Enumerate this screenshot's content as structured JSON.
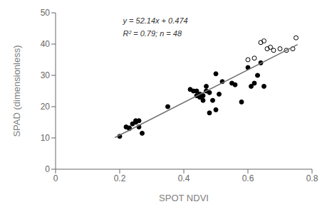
{
  "chart_data": {
    "type": "scatter",
    "title": "",
    "xlabel": "SPOT NDVI",
    "ylabel": "SPAD (dimensionless)",
    "xlim": [
      0,
      0.8
    ],
    "ylim": [
      0,
      50
    ],
    "xticks": [
      0,
      0.2,
      0.4,
      0.6,
      0.8
    ],
    "yticks": [
      0,
      10,
      20,
      30,
      40,
      50
    ],
    "grid": false,
    "annotations": [
      "y = 52.14x + 0.474",
      "R² = 0.79; n = 48"
    ],
    "series": [
      {
        "type": "scatter",
        "color": "#000000",
        "marker": "circle",
        "x": [
          0.2,
          0.22,
          0.23,
          0.23,
          0.24,
          0.25,
          0.25,
          0.26,
          0.26,
          0.27,
          0.35,
          0.42,
          0.43,
          0.44,
          0.44,
          0.45,
          0.45,
          0.46,
          0.46,
          0.47,
          0.47,
          0.48,
          0.48,
          0.49,
          0.5,
          0.5,
          0.51,
          0.52,
          0.55,
          0.56,
          0.58,
          0.6,
          0.61,
          0.62,
          0.63,
          0.64,
          0.65
        ],
        "values": [
          10.5,
          13.5,
          13.0,
          13.2,
          14.5,
          15.0,
          15.5,
          13.5,
          15.5,
          11.5,
          20.0,
          25.5,
          25.0,
          25.0,
          23.5,
          24.0,
          23.0,
          22.0,
          23.5,
          26.5,
          25.0,
          18.0,
          24.5,
          22.0,
          30.5,
          19.0,
          24.0,
          28.0,
          27.5,
          27.0,
          21.5,
          32.5,
          26.5,
          27.5,
          30.0,
          34.0,
          26.5
        ]
      },
      {
        "type": "scatter",
        "color": "#000000",
        "marker": "open_circle",
        "x": [
          0.6,
          0.62,
          0.64,
          0.65,
          0.66,
          0.67,
          0.68,
          0.7,
          0.72,
          0.74,
          0.75
        ],
        "values": [
          35.0,
          35.5,
          40.5,
          41.0,
          38.5,
          39.0,
          38.0,
          38.5,
          38.0,
          38.5,
          42.0
        ]
      },
      {
        "type": "line",
        "color": "#707070",
        "x": [
          0.185,
          0.755
        ],
        "values": [
          10.1199,
          39.8397
        ]
      }
    ]
  }
}
